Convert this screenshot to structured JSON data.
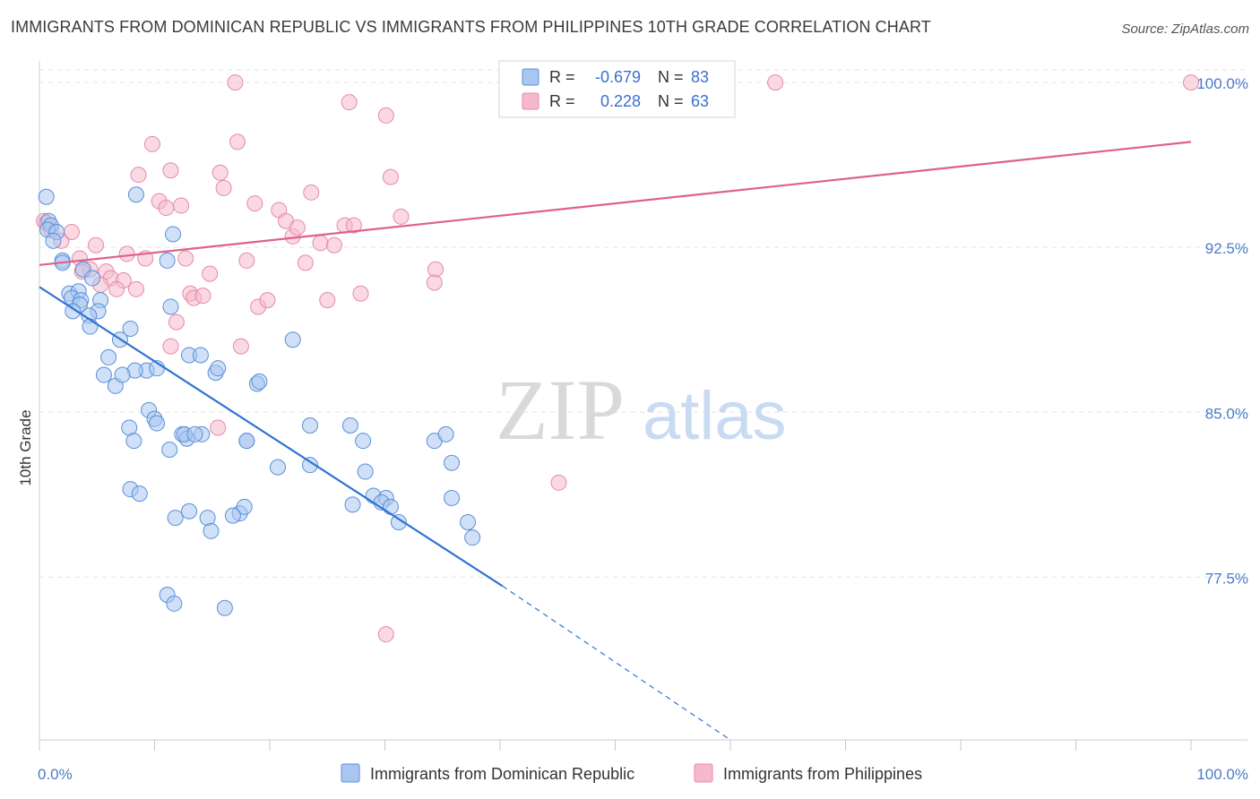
{
  "title": "IMMIGRANTS FROM DOMINICAN REPUBLIC VS IMMIGRANTS FROM PHILIPPINES 10TH GRADE CORRELATION CHART",
  "source": "Source: ZipAtlas.com",
  "watermark": {
    "zip": "ZIP",
    "atlas": "atlas"
  },
  "colors": {
    "blue_fill": "#a9c6f0",
    "blue_stroke": "#5b8fd8",
    "blue_line": "#2f74d0",
    "pink_fill": "#f6b9cc",
    "pink_stroke": "#e58aa8",
    "pink_line": "#e0608a",
    "tick_text": "#4a7bc8",
    "grid": "#e4e4e4"
  },
  "chart_data": {
    "type": "scatter",
    "title": "IMMIGRANTS FROM DOMINICAN REPUBLIC VS IMMIGRANTS FROM PHILIPPINES 10TH GRADE CORRELATION CHART",
    "xlabel": "",
    "ylabel": "10th Grade",
    "xlim": [
      0,
      100
    ],
    "ylim": [
      70.1,
      100.9
    ],
    "x_tick_labels": [
      "0.0%",
      "100.0%"
    ],
    "y_ticks": [
      77.5,
      85.0,
      92.5,
      100.0
    ],
    "y_tick_labels": [
      "77.5%",
      "85.0%",
      "92.5%",
      "100.0%"
    ],
    "grid": true,
    "legend_position": "bottom",
    "stats": [
      {
        "r_label": "R =",
        "r": "-0.679",
        "n_label": "N =",
        "n": "83"
      },
      {
        "r_label": "R =",
        "r": "0.228",
        "n_label": "N =",
        "n": "63"
      }
    ],
    "series": [
      {
        "name": "Immigrants from Dominican Republic",
        "color": "blue",
        "trend": {
          "x0": 0,
          "y0": 90.7,
          "x1": 40.2,
          "y1": 77.1,
          "dash_to_x": 60,
          "dash_to_y": 70.1
        },
        "points": [
          [
            0.6,
            94.8
          ],
          [
            0.8,
            93.7
          ],
          [
            1.0,
            93.5
          ],
          [
            0.7,
            93.3
          ],
          [
            1.5,
            93.2
          ],
          [
            1.2,
            92.8
          ],
          [
            2.0,
            91.9
          ],
          [
            2.0,
            91.8
          ],
          [
            3.8,
            91.5
          ],
          [
            4.6,
            91.1
          ],
          [
            2.6,
            90.4
          ],
          [
            3.4,
            90.5
          ],
          [
            2.8,
            90.2
          ],
          [
            3.6,
            90.1
          ],
          [
            5.3,
            90.1
          ],
          [
            3.5,
            89.9
          ],
          [
            2.9,
            89.6
          ],
          [
            5.1,
            89.6
          ],
          [
            4.3,
            89.4
          ],
          [
            4.4,
            88.9
          ],
          [
            7.0,
            88.3
          ],
          [
            7.9,
            88.8
          ],
          [
            6.0,
            87.5
          ],
          [
            9.3,
            86.9
          ],
          [
            8.3,
            86.9
          ],
          [
            5.6,
            86.7
          ],
          [
            6.6,
            86.2
          ],
          [
            7.2,
            86.7
          ],
          [
            9.5,
            85.1
          ],
          [
            10.0,
            84.7
          ],
          [
            10.2,
            84.5
          ],
          [
            7.8,
            84.3
          ],
          [
            8.2,
            83.7
          ],
          [
            11.3,
            83.3
          ],
          [
            12.4,
            84.0
          ],
          [
            12.8,
            83.8
          ],
          [
            14.1,
            84.0
          ],
          [
            12.6,
            84.0
          ],
          [
            13.5,
            84.0
          ],
          [
            18.0,
            83.7
          ],
          [
            20.7,
            82.5
          ],
          [
            27.0,
            84.4
          ],
          [
            23.5,
            82.6
          ],
          [
            28.3,
            82.3
          ],
          [
            28.1,
            83.7
          ],
          [
            27.2,
            80.8
          ],
          [
            29.0,
            81.2
          ],
          [
            30.1,
            81.1
          ],
          [
            29.7,
            80.9
          ],
          [
            30.5,
            80.7
          ],
          [
            31.2,
            80.0
          ],
          [
            17.4,
            80.4
          ],
          [
            17.8,
            80.7
          ],
          [
            11.8,
            80.2
          ],
          [
            13.0,
            80.5
          ],
          [
            16.8,
            80.3
          ],
          [
            14.6,
            80.2
          ],
          [
            14.9,
            79.6
          ],
          [
            35.8,
            82.7
          ],
          [
            34.3,
            83.7
          ],
          [
            35.8,
            81.1
          ],
          [
            35.3,
            84.0
          ],
          [
            37.2,
            80.0
          ],
          [
            37.6,
            79.3
          ],
          [
            7.9,
            81.5
          ],
          [
            18.0,
            83.7
          ],
          [
            8.7,
            81.3
          ],
          [
            11.1,
            76.7
          ],
          [
            11.7,
            76.3
          ],
          [
            16.1,
            76.1
          ],
          [
            23.5,
            84.4
          ],
          [
            22.0,
            88.3
          ],
          [
            18.9,
            86.3
          ],
          [
            19.1,
            86.4
          ],
          [
            15.3,
            86.8
          ],
          [
            15.5,
            87.0
          ],
          [
            10.2,
            87.0
          ],
          [
            13.0,
            87.6
          ],
          [
            14.0,
            87.6
          ],
          [
            11.4,
            89.8
          ],
          [
            11.1,
            91.9
          ],
          [
            8.4,
            94.9
          ],
          [
            11.6,
            93.1
          ]
        ]
      },
      {
        "name": "Immigrants from Philippines",
        "color": "pink",
        "trend": {
          "x0": 0,
          "y0": 91.7,
          "x1": 100,
          "y1": 97.3
        },
        "points": [
          [
            0.4,
            93.7
          ],
          [
            0.6,
            93.6
          ],
          [
            1.0,
            93.3
          ],
          [
            1.9,
            92.8
          ],
          [
            2.8,
            93.2
          ],
          [
            3.5,
            92.0
          ],
          [
            4.4,
            91.5
          ],
          [
            4.9,
            92.6
          ],
          [
            3.7,
            91.4
          ],
          [
            5.8,
            91.4
          ],
          [
            6.2,
            91.1
          ],
          [
            5.3,
            90.8
          ],
          [
            7.3,
            91.0
          ],
          [
            8.4,
            90.6
          ],
          [
            6.7,
            90.6
          ],
          [
            7.6,
            92.2
          ],
          [
            9.2,
            92.0
          ],
          [
            8.6,
            95.8
          ],
          [
            9.8,
            97.2
          ],
          [
            10.4,
            94.6
          ],
          [
            11.0,
            94.3
          ],
          [
            11.4,
            96.0
          ],
          [
            12.3,
            94.4
          ],
          [
            12.7,
            92.0
          ],
          [
            13.1,
            90.4
          ],
          [
            13.4,
            90.2
          ],
          [
            14.2,
            90.3
          ],
          [
            14.8,
            91.3
          ],
          [
            15.7,
            95.9
          ],
          [
            16.0,
            95.2
          ],
          [
            17.2,
            97.3
          ],
          [
            17.5,
            88.0
          ],
          [
            18.0,
            91.9
          ],
          [
            18.7,
            94.5
          ],
          [
            19.0,
            89.8
          ],
          [
            19.8,
            90.1
          ],
          [
            20.8,
            94.2
          ],
          [
            21.4,
            93.7
          ],
          [
            22.0,
            93.0
          ],
          [
            22.4,
            93.4
          ],
          [
            23.1,
            91.8
          ],
          [
            23.6,
            95.0
          ],
          [
            24.4,
            92.7
          ],
          [
            25.0,
            90.1
          ],
          [
            25.6,
            92.6
          ],
          [
            26.5,
            93.5
          ],
          [
            26.9,
            99.1
          ],
          [
            27.3,
            93.5
          ],
          [
            27.9,
            90.4
          ],
          [
            30.1,
            98.5
          ],
          [
            30.5,
            95.7
          ],
          [
            31.4,
            93.9
          ],
          [
            34.4,
            91.5
          ],
          [
            34.3,
            90.9
          ],
          [
            17.0,
            100.0
          ],
          [
            45.1,
            81.8
          ],
          [
            59.7,
            100.0
          ],
          [
            63.9,
            100.0
          ],
          [
            100.0,
            100.0
          ],
          [
            30.1,
            74.9
          ],
          [
            11.4,
            88.0
          ],
          [
            15.5,
            84.3
          ],
          [
            11.9,
            89.1
          ]
        ]
      }
    ]
  }
}
